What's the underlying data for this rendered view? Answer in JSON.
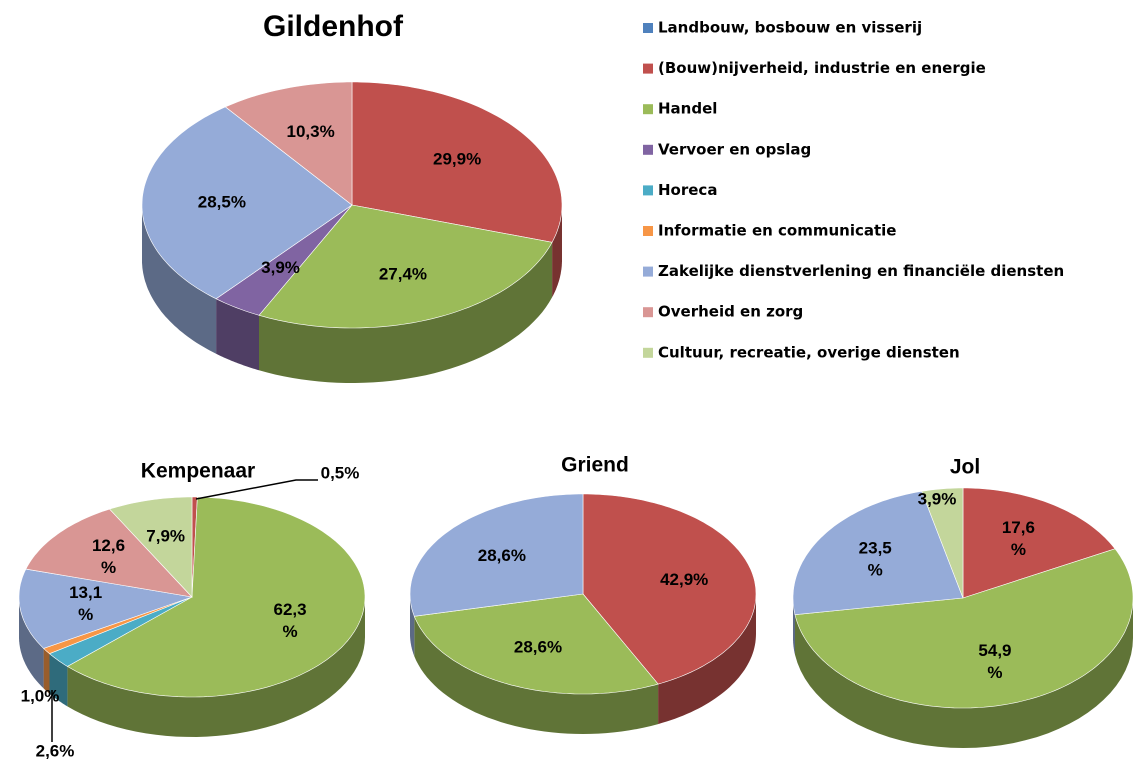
{
  "legend": {
    "names": [
      "Landbouw, bosbouw en visserij",
      "(Bouw)nijverheid, industrie en energie",
      "Handel",
      "Vervoer en opslag",
      "Horeca",
      "Informatie en communicatie",
      "Zakelijke dienstverlening en financiële diensten",
      "Overheid en zorg",
      "Cultuur, recreatie, overige diensten"
    ],
    "colors": [
      "#4f81bd",
      "#c0504d",
      "#9bbb59",
      "#8064a2",
      "#4bacc6",
      "#f79646",
      "#95abd8",
      "#d99694",
      "#c3d69b"
    ]
  },
  "chart_data": [
    {
      "type": "pie",
      "title": "Gildenhof",
      "categories": [
        "(Bouw)nijverheid, industrie en energie",
        "Handel",
        "Vervoer en opslag",
        "Zakelijke dienstverlening en financiële diensten",
        "Overheid en zorg"
      ],
      "values": [
        29.9,
        27.4,
        3.9,
        28.5,
        10.3
      ],
      "value_labels": [
        "29,9%",
        "27,4%",
        "3,9%",
        "28,5%",
        "10,3%"
      ]
    },
    {
      "type": "pie",
      "title": "Kempenaar",
      "categories": [
        "(Bouw)nijverheid, industrie en energie",
        "Handel",
        "Horeca",
        "Informatie en communicatie",
        "Zakelijke dienstverlening en financiële diensten",
        "Overheid en zorg",
        "Cultuur, recreatie, overige diensten"
      ],
      "values": [
        0.5,
        62.3,
        2.6,
        1.0,
        13.1,
        12.6,
        7.9
      ],
      "value_labels": [
        "0,5%",
        "62,3 %",
        "2,6%",
        "1,0%",
        "13,1 %",
        "12,6 %",
        "7,9%"
      ]
    },
    {
      "type": "pie",
      "title": "Griend",
      "categories": [
        "(Bouw)nijverheid, industrie en energie",
        "Handel",
        "Zakelijke dienstverlening en financiële diensten"
      ],
      "values": [
        42.9,
        28.6,
        28.6
      ],
      "value_labels": [
        "42,9%",
        "28,6%",
        "28,6%"
      ]
    },
    {
      "type": "pie",
      "title": "Jol",
      "categories": [
        "(Bouw)nijverheid, industrie en energie",
        "Handel",
        "Zakelijke dienstverlening en financiële diensten",
        "Cultuur, recreatie, overige diensten"
      ],
      "values": [
        17.6,
        54.9,
        23.5,
        3.9
      ],
      "value_labels": [
        "17,6 %",
        "54,9 %",
        "23,5 %",
        "3,9%"
      ]
    }
  ]
}
